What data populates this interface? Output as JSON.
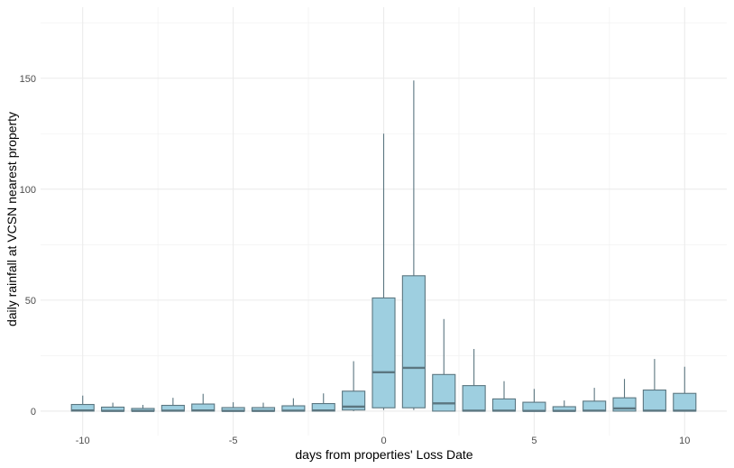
{
  "chart_data": {
    "type": "box",
    "title": "",
    "xlabel": "days from properties' Loss Date",
    "ylabel": "daily rainfall  at VCSN nearest property",
    "xlim": [
      -11.4,
      11.4
    ],
    "ylim": [
      -11,
      182
    ],
    "x_ticks": [
      -10,
      -5,
      0,
      5,
      10
    ],
    "x_tick_labels": [
      "-10",
      "-5",
      "0",
      "5",
      "10"
    ],
    "y_ticks": [
      0,
      50,
      100,
      150
    ],
    "y_tick_labels": [
      "0",
      "50",
      "100",
      "150"
    ],
    "grid": true,
    "box_fill": "#9ecfe0",
    "box_stroke": "#5b7680",
    "boxes": [
      {
        "day": -10,
        "lower_whisker": 0,
        "q1": 0,
        "median": 0.3,
        "q3": 3,
        "upper_whisker": 7
      },
      {
        "day": -9,
        "lower_whisker": 0,
        "q1": 0,
        "median": 0.1,
        "q3": 1.8,
        "upper_whisker": 3.8
      },
      {
        "day": -8,
        "lower_whisker": 0,
        "q1": 0,
        "median": 0.1,
        "q3": 1.2,
        "upper_whisker": 2.8
      },
      {
        "day": -7,
        "lower_whisker": 0,
        "q1": 0,
        "median": 0.2,
        "q3": 2.6,
        "upper_whisker": 6
      },
      {
        "day": -6,
        "lower_whisker": 0,
        "q1": 0,
        "median": 0.3,
        "q3": 3.2,
        "upper_whisker": 7.8
      },
      {
        "day": -5,
        "lower_whisker": 0,
        "q1": 0,
        "median": 0.1,
        "q3": 1.6,
        "upper_whisker": 4
      },
      {
        "day": -4,
        "lower_whisker": 0,
        "q1": 0,
        "median": 0.1,
        "q3": 1.6,
        "upper_whisker": 3.8
      },
      {
        "day": -3,
        "lower_whisker": 0,
        "q1": 0,
        "median": 0.2,
        "q3": 2.4,
        "upper_whisker": 5.8
      },
      {
        "day": -2,
        "lower_whisker": 0,
        "q1": 0,
        "median": 0.3,
        "q3": 3.4,
        "upper_whisker": 8
      },
      {
        "day": -1,
        "lower_whisker": 0,
        "q1": 0.5,
        "median": 2,
        "q3": 9,
        "upper_whisker": 22.5
      },
      {
        "day": 0,
        "lower_whisker": 0.5,
        "q1": 1.5,
        "median": 17.5,
        "q3": 51,
        "upper_whisker": 125
      },
      {
        "day": 1,
        "lower_whisker": 0.5,
        "q1": 1.5,
        "median": 19.5,
        "q3": 61,
        "upper_whisker": 149
      },
      {
        "day": 2,
        "lower_whisker": 0,
        "q1": 0,
        "median": 3.5,
        "q3": 16.5,
        "upper_whisker": 41.5
      },
      {
        "day": 3,
        "lower_whisker": 0,
        "q1": 0,
        "median": 0.2,
        "q3": 11.5,
        "upper_whisker": 28
      },
      {
        "day": 4,
        "lower_whisker": 0,
        "q1": 0,
        "median": 0.2,
        "q3": 5.5,
        "upper_whisker": 13.5
      },
      {
        "day": 5,
        "lower_whisker": 0,
        "q1": 0,
        "median": 0.1,
        "q3": 4,
        "upper_whisker": 10
      },
      {
        "day": 6,
        "lower_whisker": 0,
        "q1": 0,
        "median": 0.1,
        "q3": 2,
        "upper_whisker": 4.8
      },
      {
        "day": 7,
        "lower_whisker": 0,
        "q1": 0,
        "median": 0.2,
        "q3": 4.5,
        "upper_whisker": 10.5
      },
      {
        "day": 8,
        "lower_whisker": 0,
        "q1": 0,
        "median": 1.2,
        "q3": 6,
        "upper_whisker": 14.5
      },
      {
        "day": 9,
        "lower_whisker": 0,
        "q1": 0,
        "median": 0.2,
        "q3": 9.5,
        "upper_whisker": 23.5
      },
      {
        "day": 10,
        "lower_whisker": 0,
        "q1": 0,
        "median": 0.2,
        "q3": 8,
        "upper_whisker": 20
      }
    ]
  }
}
